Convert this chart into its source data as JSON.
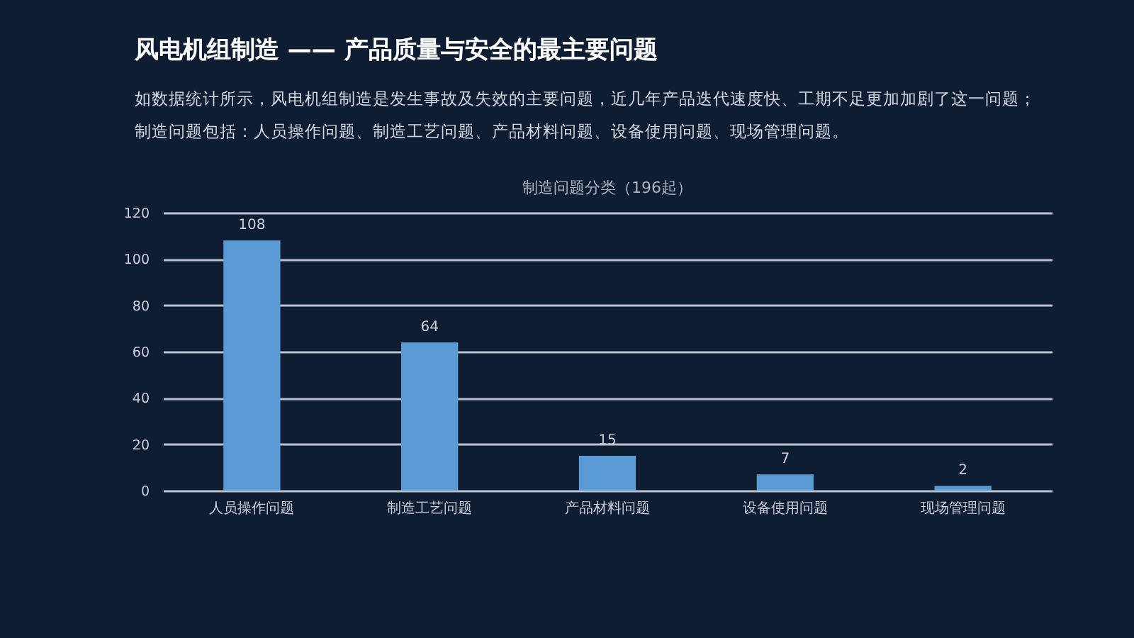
{
  "chart_data": {
    "type": "bar",
    "title": "风电机组制造 —— 产品质量与安全的最主要问题",
    "subtitle": "如数据统计所示，风电机组制造是发生事故及失效的主要问题，近几年产品迭代速度快、工期不足更加加剧了这一问题；制造问题包括：人员操作问题、制造工艺问题、产品材料问题、设备使用问题、现场管理问题。",
    "annotations": [
      "制造问题分类（196起）"
    ],
    "categories": [
      "人员操作问题",
      "制造工艺问题",
      "产品材料问题",
      "设备使用问题",
      "现场管理问题"
    ],
    "values": [
      108,
      64,
      15,
      7,
      2
    ],
    "color": "#5b9bd5",
    "ylim": [
      0,
      120
    ],
    "yticks": [
      0,
      20,
      40,
      60,
      80,
      100,
      120
    ],
    "grid": "y",
    "data_labels": true
  }
}
